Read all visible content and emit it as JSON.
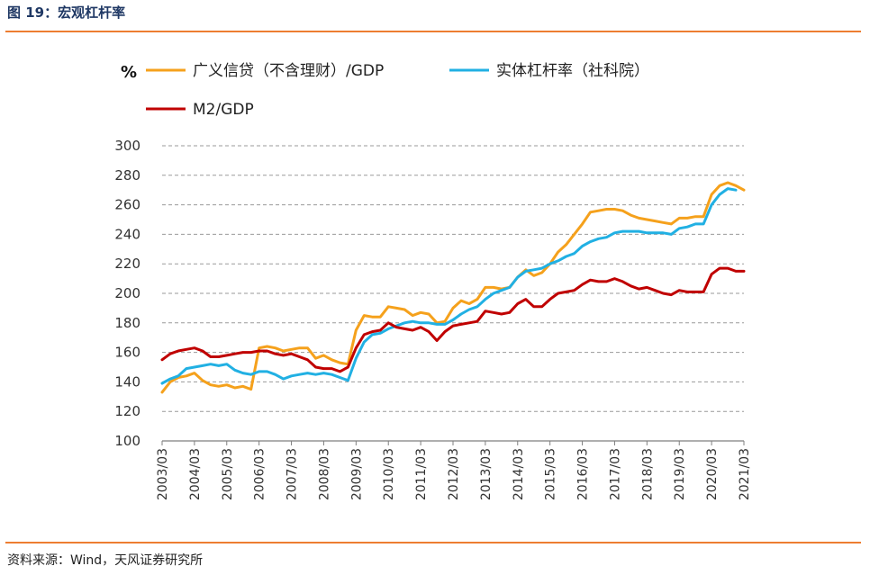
{
  "header": {
    "figure_title": "图 19：宏观杠杆率"
  },
  "footer": {
    "source": "资料来源：Wind，天风证券研究所"
  },
  "colors": {
    "rule": "#ed7d31",
    "title": "#1f3864"
  },
  "chart_data": {
    "type": "line",
    "title": "",
    "unit_label": "%",
    "ylim": [
      100,
      300
    ],
    "yticks": [
      100,
      120,
      140,
      160,
      180,
      200,
      220,
      240,
      260,
      280,
      300
    ],
    "xlim": [
      2003.0,
      2021.0
    ],
    "xticks": [
      "2003/03",
      "2004/03",
      "2005/03",
      "2006/03",
      "2007/03",
      "2008/03",
      "2009/03",
      "2010/03",
      "2011/03",
      "2012/03",
      "2013/03",
      "2014/03",
      "2015/03",
      "2016/03",
      "2017/03",
      "2018/03",
      "2019/03",
      "2020/03",
      "2021/03"
    ],
    "grid": "horizontal dashed",
    "legend": "top-left",
    "series": [
      {
        "name": "广义信贷（不含理财）/GDP",
        "color": "#f5a11c",
        "points": [
          [
            2003.0,
            133
          ],
          [
            2003.25,
            140
          ],
          [
            2003.5,
            143
          ],
          [
            2003.75,
            144
          ],
          [
            2004.0,
            146
          ],
          [
            2004.25,
            141
          ],
          [
            2004.5,
            138
          ],
          [
            2004.75,
            137
          ],
          [
            2005.0,
            138
          ],
          [
            2005.25,
            136
          ],
          [
            2005.5,
            137
          ],
          [
            2005.75,
            135
          ],
          [
            2006.0,
            163
          ],
          [
            2006.25,
            164
          ],
          [
            2006.5,
            163
          ],
          [
            2006.75,
            161
          ],
          [
            2007.0,
            162
          ],
          [
            2007.25,
            163
          ],
          [
            2007.5,
            163
          ],
          [
            2007.75,
            156
          ],
          [
            2008.0,
            158
          ],
          [
            2008.25,
            155
          ],
          [
            2008.5,
            153
          ],
          [
            2008.75,
            152
          ],
          [
            2009.0,
            175
          ],
          [
            2009.25,
            185
          ],
          [
            2009.5,
            184
          ],
          [
            2009.75,
            184
          ],
          [
            2010.0,
            191
          ],
          [
            2010.25,
            190
          ],
          [
            2010.5,
            189
          ],
          [
            2010.75,
            185
          ],
          [
            2011.0,
            187
          ],
          [
            2011.25,
            186
          ],
          [
            2011.5,
            180
          ],
          [
            2011.75,
            181
          ],
          [
            2012.0,
            190
          ],
          [
            2012.25,
            195
          ],
          [
            2012.5,
            193
          ],
          [
            2012.75,
            196
          ],
          [
            2013.0,
            204
          ],
          [
            2013.25,
            204
          ],
          [
            2013.5,
            203
          ],
          [
            2013.75,
            204
          ],
          [
            2014.0,
            211
          ],
          [
            2014.25,
            216
          ],
          [
            2014.5,
            212
          ],
          [
            2014.75,
            214
          ],
          [
            2015.0,
            220
          ],
          [
            2015.25,
            228
          ],
          [
            2015.5,
            233
          ],
          [
            2015.75,
            240
          ],
          [
            2016.0,
            247
          ],
          [
            2016.25,
            255
          ],
          [
            2016.5,
            256
          ],
          [
            2016.75,
            257
          ],
          [
            2017.0,
            257
          ],
          [
            2017.25,
            256
          ],
          [
            2017.5,
            253
          ],
          [
            2017.75,
            251
          ],
          [
            2018.0,
            250
          ],
          [
            2018.25,
            249
          ],
          [
            2018.5,
            248
          ],
          [
            2018.75,
            247
          ],
          [
            2019.0,
            251
          ],
          [
            2019.25,
            251
          ],
          [
            2019.5,
            252
          ],
          [
            2019.75,
            252
          ],
          [
            2020.0,
            267
          ],
          [
            2020.25,
            273
          ],
          [
            2020.5,
            275
          ],
          [
            2020.75,
            273
          ],
          [
            2021.0,
            270
          ]
        ]
      },
      {
        "name": "实体杠杆率（社科院）",
        "color": "#21b0e3",
        "points": [
          [
            2003.0,
            139
          ],
          [
            2003.25,
            142
          ],
          [
            2003.5,
            144
          ],
          [
            2003.75,
            149
          ],
          [
            2004.0,
            150
          ],
          [
            2004.25,
            151
          ],
          [
            2004.5,
            152
          ],
          [
            2004.75,
            151
          ],
          [
            2005.0,
            152
          ],
          [
            2005.25,
            148
          ],
          [
            2005.5,
            146
          ],
          [
            2005.75,
            145
          ],
          [
            2006.0,
            147
          ],
          [
            2006.25,
            147
          ],
          [
            2006.5,
            145
          ],
          [
            2006.75,
            142
          ],
          [
            2007.0,
            144
          ],
          [
            2007.25,
            145
          ],
          [
            2007.5,
            146
          ],
          [
            2007.75,
            145
          ],
          [
            2008.0,
            146
          ],
          [
            2008.25,
            145
          ],
          [
            2008.5,
            143
          ],
          [
            2008.75,
            141
          ],
          [
            2009.0,
            156
          ],
          [
            2009.25,
            167
          ],
          [
            2009.5,
            172
          ],
          [
            2009.75,
            173
          ],
          [
            2010.0,
            176
          ],
          [
            2010.25,
            178
          ],
          [
            2010.5,
            180
          ],
          [
            2010.75,
            181
          ],
          [
            2011.0,
            180
          ],
          [
            2011.25,
            180
          ],
          [
            2011.5,
            179
          ],
          [
            2011.75,
            179
          ],
          [
            2012.0,
            182
          ],
          [
            2012.25,
            186
          ],
          [
            2012.5,
            189
          ],
          [
            2012.75,
            191
          ],
          [
            2013.0,
            196
          ],
          [
            2013.25,
            200
          ],
          [
            2013.5,
            202
          ],
          [
            2013.75,
            204
          ],
          [
            2014.0,
            211
          ],
          [
            2014.25,
            215
          ],
          [
            2014.5,
            216
          ],
          [
            2014.75,
            217
          ],
          [
            2015.0,
            220
          ],
          [
            2015.25,
            222
          ],
          [
            2015.5,
            225
          ],
          [
            2015.75,
            227
          ],
          [
            2016.0,
            232
          ],
          [
            2016.25,
            235
          ],
          [
            2016.5,
            237
          ],
          [
            2016.75,
            238
          ],
          [
            2017.0,
            241
          ],
          [
            2017.25,
            242
          ],
          [
            2017.5,
            242
          ],
          [
            2017.75,
            242
          ],
          [
            2018.0,
            241
          ],
          [
            2018.25,
            241
          ],
          [
            2018.5,
            241
          ],
          [
            2018.75,
            240
          ],
          [
            2019.0,
            244
          ],
          [
            2019.25,
            245
          ],
          [
            2019.5,
            247
          ],
          [
            2019.75,
            247
          ],
          [
            2020.0,
            260
          ],
          [
            2020.25,
            267
          ],
          [
            2020.5,
            271
          ],
          [
            2020.75,
            270
          ]
        ]
      },
      {
        "name": "M2/GDP",
        "color": "#c00000",
        "points": [
          [
            2003.0,
            155
          ],
          [
            2003.25,
            159
          ],
          [
            2003.5,
            161
          ],
          [
            2003.75,
            162
          ],
          [
            2004.0,
            163
          ],
          [
            2004.25,
            161
          ],
          [
            2004.5,
            157
          ],
          [
            2004.75,
            157
          ],
          [
            2005.0,
            158
          ],
          [
            2005.25,
            159
          ],
          [
            2005.5,
            160
          ],
          [
            2005.75,
            160
          ],
          [
            2006.0,
            161
          ],
          [
            2006.25,
            161
          ],
          [
            2006.5,
            159
          ],
          [
            2006.75,
            158
          ],
          [
            2007.0,
            159
          ],
          [
            2007.25,
            157
          ],
          [
            2007.5,
            155
          ],
          [
            2007.75,
            150
          ],
          [
            2008.0,
            149
          ],
          [
            2008.25,
            149
          ],
          [
            2008.5,
            147
          ],
          [
            2008.75,
            150
          ],
          [
            2009.0,
            163
          ],
          [
            2009.25,
            172
          ],
          [
            2009.5,
            174
          ],
          [
            2009.75,
            175
          ],
          [
            2010.0,
            180
          ],
          [
            2010.25,
            177
          ],
          [
            2010.5,
            176
          ],
          [
            2010.75,
            175
          ],
          [
            2011.0,
            177
          ],
          [
            2011.25,
            174
          ],
          [
            2011.5,
            168
          ],
          [
            2011.75,
            174
          ],
          [
            2012.0,
            178
          ],
          [
            2012.25,
            179
          ],
          [
            2012.5,
            180
          ],
          [
            2012.75,
            181
          ],
          [
            2013.0,
            188
          ],
          [
            2013.25,
            187
          ],
          [
            2013.5,
            186
          ],
          [
            2013.75,
            187
          ],
          [
            2014.0,
            193
          ],
          [
            2014.25,
            196
          ],
          [
            2014.5,
            191
          ],
          [
            2014.75,
            191
          ],
          [
            2015.0,
            196
          ],
          [
            2015.25,
            200
          ],
          [
            2015.5,
            201
          ],
          [
            2015.75,
            202
          ],
          [
            2016.0,
            206
          ],
          [
            2016.25,
            209
          ],
          [
            2016.5,
            208
          ],
          [
            2016.75,
            208
          ],
          [
            2017.0,
            210
          ],
          [
            2017.25,
            208
          ],
          [
            2017.5,
            205
          ],
          [
            2017.75,
            203
          ],
          [
            2018.0,
            204
          ],
          [
            2018.25,
            202
          ],
          [
            2018.5,
            200
          ],
          [
            2018.75,
            199
          ],
          [
            2019.0,
            202
          ],
          [
            2019.25,
            201
          ],
          [
            2019.5,
            201
          ],
          [
            2019.75,
            201
          ],
          [
            2020.0,
            213
          ],
          [
            2020.25,
            217
          ],
          [
            2020.5,
            217
          ],
          [
            2020.75,
            215
          ],
          [
            2021.0,
            215
          ]
        ]
      }
    ]
  }
}
